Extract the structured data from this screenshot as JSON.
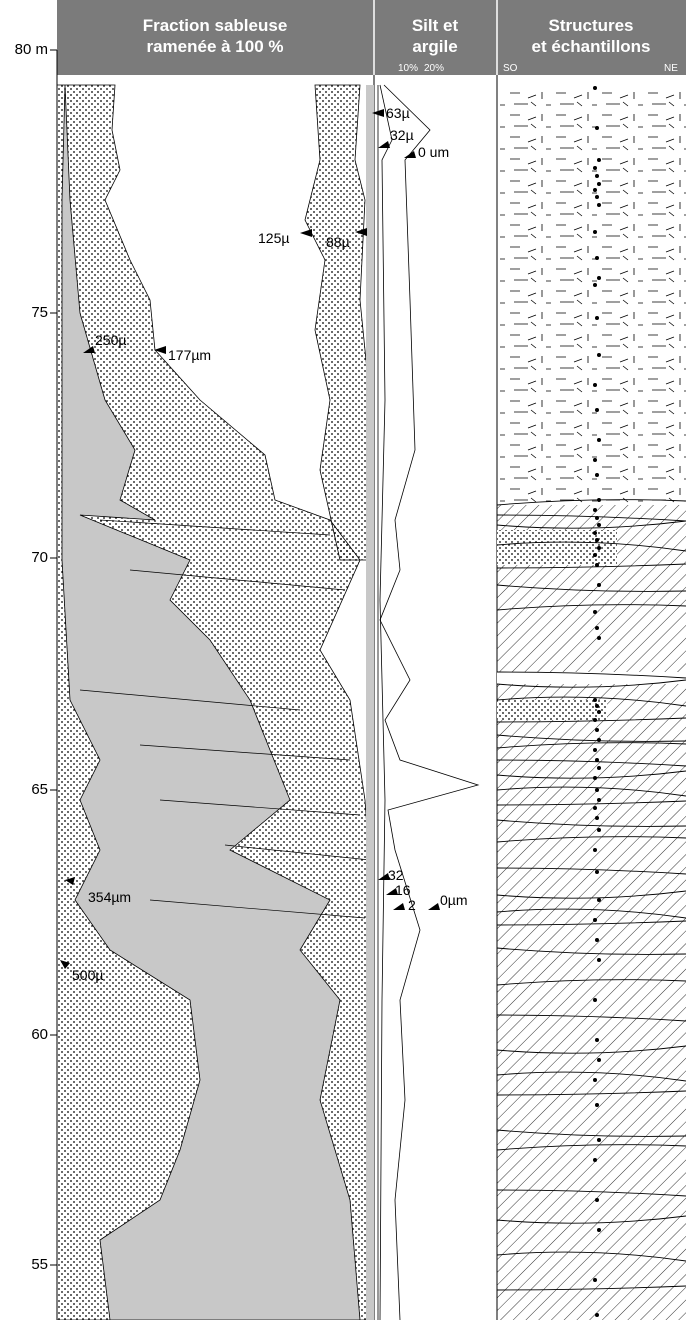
{
  "header": {
    "sand": {
      "line1": "Fraction sableuse",
      "line2": "ramenée à 100 %"
    },
    "silt": {
      "line1": "Silt et",
      "line2": "argile",
      "scale1": "10%",
      "scale2": "20%"
    },
    "structures": {
      "line1": "Structures",
      "line2": "et échantillons",
      "left": "SO",
      "right": "NE"
    }
  },
  "depth_axis": {
    "labels": [
      "80 m",
      "75",
      "70",
      "65",
      "60",
      "55"
    ]
  },
  "annotations": [
    "63µ",
    "32µ",
    "0 um",
    "125µ",
    "88µ",
    "250µ",
    "177µm",
    "354µm",
    "32",
    "16",
    "2",
    "0µm",
    "500µ"
  ]
}
